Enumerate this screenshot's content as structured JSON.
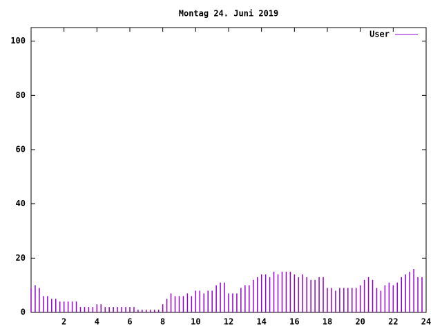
{
  "chart_data": {
    "type": "impulses",
    "title": "Montag 24. Juni 2019",
    "x": [
      0,
      0.25,
      0.5,
      0.75,
      1,
      1.25,
      1.5,
      1.75,
      2,
      2.25,
      2.5,
      2.75,
      3,
      3.25,
      3.5,
      3.75,
      4,
      4.25,
      4.5,
      4.75,
      5,
      5.25,
      5.5,
      5.75,
      6,
      6.25,
      6.5,
      6.75,
      7,
      7.25,
      7.5,
      7.75,
      8,
      8.25,
      8.5,
      8.75,
      9,
      9.25,
      9.5,
      9.75,
      10,
      10.25,
      10.5,
      10.75,
      11,
      11.25,
      11.5,
      11.75,
      12,
      12.25,
      12.5,
      12.75,
      13,
      13.25,
      13.5,
      13.75,
      14,
      14.25,
      14.5,
      14.75,
      15,
      15.25,
      15.5,
      15.75,
      16,
      16.25,
      16.5,
      16.75,
      17,
      17.25,
      17.5,
      17.75,
      18,
      18.25,
      18.5,
      18.75,
      19,
      19.25,
      19.5,
      19.75,
      20,
      20.25,
      20.5,
      20.75,
      21,
      21.25,
      21.5,
      21.75,
      22,
      22.25,
      22.5,
      22.75,
      23,
      23.25,
      23.5,
      23.75
    ],
    "series": [
      {
        "name": "User",
        "color": "#9400d3",
        "values": [
          9,
          10,
          9,
          6,
          6,
          5,
          5,
          4,
          4,
          4,
          4,
          4,
          2,
          2,
          2,
          2,
          3,
          3,
          2,
          2,
          2,
          2,
          2,
          2,
          2,
          2,
          1,
          1,
          1,
          1,
          1,
          1,
          3,
          5,
          7,
          6,
          6,
          6,
          7,
          6,
          8,
          8,
          7,
          8,
          8,
          10,
          11,
          11,
          7,
          7,
          7,
          9,
          10,
          10,
          12,
          13,
          14,
          14,
          13,
          15,
          14,
          15,
          15,
          15,
          14,
          13,
          14,
          13,
          12,
          12,
          13,
          13,
          9,
          9,
          8,
          9,
          9,
          9,
          9,
          9,
          10,
          12,
          13,
          12,
          9,
          8,
          10,
          11,
          10,
          11,
          13,
          14,
          15,
          16,
          13,
          13
        ]
      }
    ],
    "xlim": [
      0,
      24
    ],
    "xticks": [
      2,
      4,
      6,
      8,
      10,
      12,
      14,
      16,
      18,
      20,
      22,
      24
    ],
    "ylim": [
      0,
      105
    ],
    "yticks": [
      0,
      20,
      40,
      60,
      80,
      100
    ],
    "legend": "top-right"
  }
}
